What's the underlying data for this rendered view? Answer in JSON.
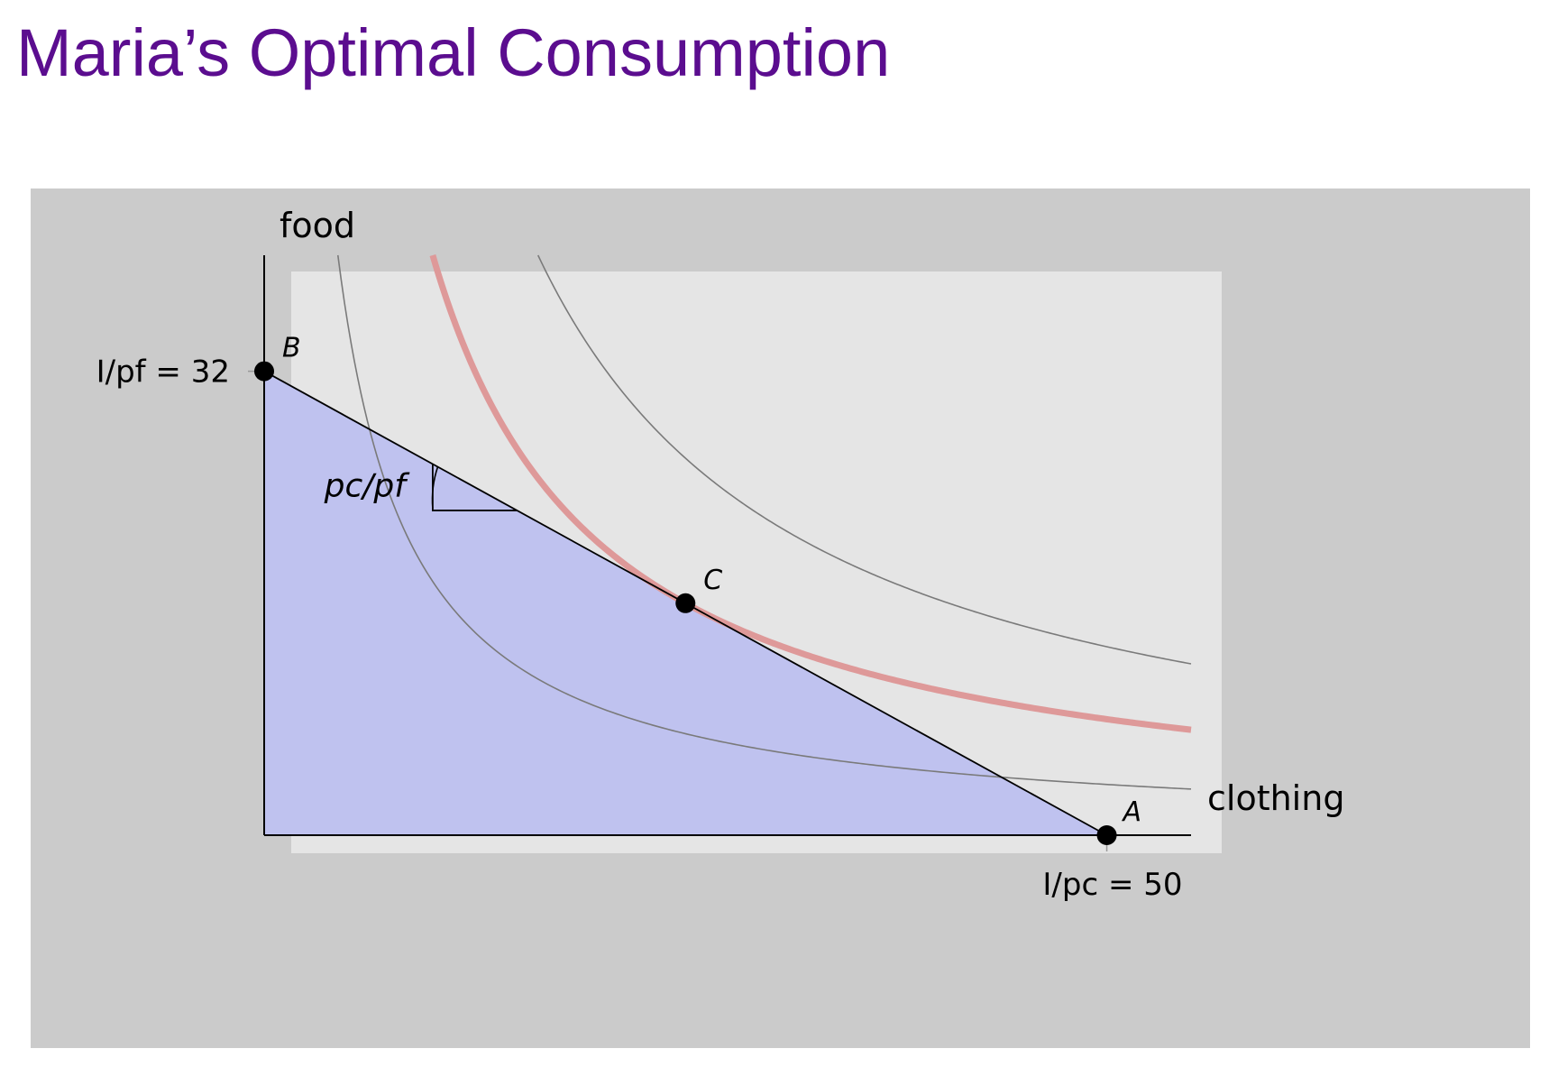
{
  "title": "Maria’s Optimal Consumption",
  "chart_data": {
    "type": "line",
    "xlabel": "clothing",
    "ylabel": "food",
    "xlim": [
      0,
      55
    ],
    "ylim": [
      0,
      40
    ],
    "budget_line": {
      "x_intercept": 50,
      "y_intercept": 32,
      "x_intercept_label": "I/pc = 50",
      "y_intercept_label": "I/pf = 32"
    },
    "slope_label": "pc/pf",
    "points": [
      {
        "label": "A",
        "x": 50,
        "y": 0
      },
      {
        "label": "B",
        "x": 0,
        "y": 32
      },
      {
        "label": "C",
        "x": 25,
        "y": 16
      }
    ],
    "indifference_curves": [
      {
        "level": 175,
        "optimal": false
      },
      {
        "level": 400,
        "optimal": true
      },
      {
        "level": 650,
        "optimal": false
      }
    ],
    "colors": {
      "feasible_fill": "#bfc2ef",
      "plot_bg": "#e5e5e5",
      "optimal_curve": "#de9999",
      "other_curves": "#7a7a7a",
      "panel_bg": "#cbcbcb",
      "title": "#5b0d8f"
    }
  }
}
